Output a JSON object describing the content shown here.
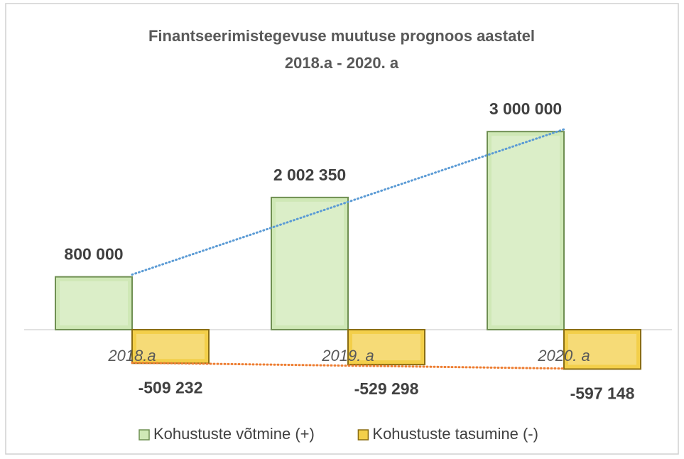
{
  "chart_data": {
    "type": "bar",
    "title": [
      "Finantseerimistegevuse  muutuse prognoos aastatel",
      "2018.a - 2020. a"
    ],
    "categories": [
      "2018.a",
      "2019. a",
      "2020. a"
    ],
    "series": [
      {
        "name": "Kohustuste võtmine (+)",
        "color": "#cfe8b6",
        "edge": "#6f8f52",
        "trendline_color": "#5b9bd5",
        "values": [
          800000,
          2002350,
          3000000
        ],
        "value_labels": [
          "800 000",
          "2 002 350",
          "3 000 000"
        ]
      },
      {
        "name": "Kohustuste tasumine (-)",
        "color": "#f3cf4a",
        "edge": "#8a6d12",
        "trendline_color": "#ed7d31",
        "values": [
          -509232,
          -529298,
          -597148
        ],
        "value_labels": [
          "-509 232",
          "-529 298",
          "-597 148"
        ]
      }
    ],
    "ylim": [
      -700000,
      3400000
    ],
    "trendline": true,
    "legend": "bottom"
  }
}
